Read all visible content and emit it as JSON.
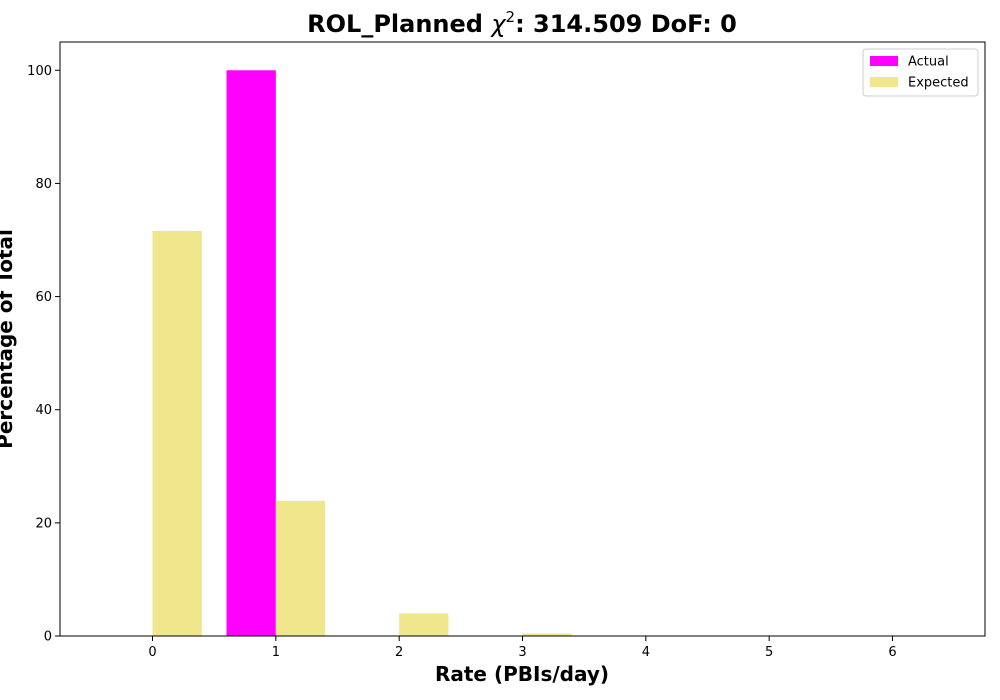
{
  "chart_data": {
    "type": "bar",
    "title": "ROL_Planned χ²: 314.509 DoF: 0",
    "title_parts": {
      "prefix": "ROL_Planned ",
      "chi": "χ",
      "sup": "2",
      "suffix": ": 314.509 DoF: 0"
    },
    "xlabel": "Rate (PBIs/day)",
    "ylabel": "Percentage of Total",
    "x": [
      0,
      1,
      2,
      3,
      4,
      5,
      6
    ],
    "xlim": [
      -0.75,
      6.75
    ],
    "ylim": [
      0,
      105
    ],
    "xticks": [
      "0",
      "1",
      "2",
      "3",
      "4",
      "5",
      "6"
    ],
    "yticks": [
      "0",
      "20",
      "40",
      "60",
      "80",
      "100"
    ],
    "grid": false,
    "legend_position": "top-right",
    "series": [
      {
        "name": "Actual",
        "color": "#ff00ff",
        "values": [
          0,
          100,
          0,
          0,
          0,
          0,
          0
        ]
      },
      {
        "name": "Expected",
        "color": "#f0e68c",
        "values": [
          71.6,
          23.9,
          4.0,
          0.44,
          0.04,
          0.0,
          0.0
        ]
      }
    ]
  }
}
